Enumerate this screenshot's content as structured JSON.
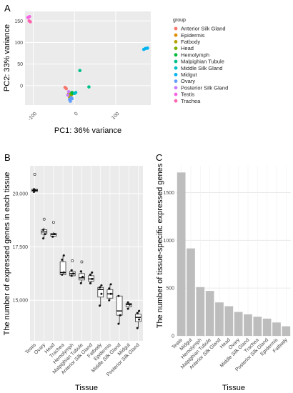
{
  "panel_labels": [
    "A",
    "B",
    "C"
  ],
  "chart_data": [
    {
      "type": "scatter",
      "panel": "A",
      "xlabel": "PC1: 36% variance",
      "ylabel": "PC2: 33% variance",
      "xlim": [
        -120,
        185
      ],
      "ylim": [
        -45,
        172
      ],
      "xticks": [
        -100,
        0,
        100
      ],
      "yticks": [
        0,
        50,
        100,
        150
      ],
      "legend_title": "group",
      "legend_position": "right",
      "grid": true,
      "series": [
        {
          "name": "Anterior Silk Gland",
          "color": "#f8766d",
          "points": [
            [
              -23,
              -4
            ],
            [
              -20,
              -7
            ]
          ]
        },
        {
          "name": "Epidermis",
          "color": "#de8c00",
          "points": [
            [
              -12,
              -18
            ],
            [
              -8,
              -22
            ]
          ]
        },
        {
          "name": "Fatbody",
          "color": "#b79f00",
          "points": [
            [
              -15,
              -20
            ],
            [
              -12,
              -26
            ]
          ]
        },
        {
          "name": "Head",
          "color": "#7cae00",
          "points": [
            [
              -10,
              -18
            ],
            [
              -8,
              -20
            ]
          ]
        },
        {
          "name": "Hemolymph",
          "color": "#00ba38",
          "points": [
            [
              -6,
              -16
            ],
            [
              -4,
              -18
            ]
          ]
        },
        {
          "name": "Malpighian Tubule",
          "color": "#00c08b",
          "points": [
            [
              13,
              35
            ],
            [
              35,
              -3
            ]
          ]
        },
        {
          "name": "Middle Silk Gland",
          "color": "#00bfc4",
          "points": [
            [
              0,
              -18
            ],
            [
              3,
              -16
            ]
          ]
        },
        {
          "name": "Midgut",
          "color": "#00b4f0",
          "points": [
            [
              168,
              84
            ],
            [
              172,
              86
            ],
            [
              177,
              87
            ]
          ]
        },
        {
          "name": "Ovary",
          "color": "#619cff",
          "points": [
            [
              -8,
              -28
            ],
            [
              -12,
              -32
            ],
            [
              -10,
              -36
            ],
            [
              -6,
              -30
            ]
          ]
        },
        {
          "name": "Posterior Silk Gland",
          "color": "#c77cff",
          "points": [
            [
              -14,
              -14
            ],
            [
              -16,
              -22
            ]
          ]
        },
        {
          "name": "Testis",
          "color": "#f564e3",
          "points": [
            [
              -113,
              158
            ],
            [
              -109,
              160
            ]
          ]
        },
        {
          "name": "Trachea",
          "color": "#ff64b0",
          "points": [
            [
              -110,
              150
            ],
            [
              -107,
              148
            ]
          ]
        }
      ]
    },
    {
      "type": "box",
      "panel": "B",
      "xlabel": "Tissue",
      "ylabel": "The number of expressed genes in each tissue",
      "ylim": [
        13100,
        21300
      ],
      "yticks": [
        15000,
        17500,
        20000
      ],
      "ytick_labels": [
        "15,000",
        "17,500",
        "20,000"
      ],
      "grid": true,
      "categories": [
        "Testis",
        "Ovary",
        "Head",
        "Trachea",
        "Hemolymph",
        "Malpighian Tubule",
        "Anterior Silk Gland",
        "Fatbody",
        "Epidermis",
        "Middle Silk Gland",
        "Midgut",
        "Posterior Silk Gland"
      ],
      "boxes": [
        {
          "q1": 20100,
          "median": 20150,
          "q3": 20200,
          "low": 20050,
          "high": 20250,
          "outliers": [
            20900
          ],
          "points": [
            20080,
            20150,
            20200
          ]
        },
        {
          "q1": 18100,
          "median": 18200,
          "q3": 18300,
          "low": 17900,
          "high": 18400,
          "outliers": [
            18800
          ],
          "points": [
            17900,
            18100,
            18300
          ]
        },
        {
          "q1": 18000,
          "median": 18080,
          "q3": 18130,
          "low": 17950,
          "high": 18200,
          "outliers": [
            18650
          ],
          "points": [
            17980,
            18100
          ]
        },
        {
          "q1": 16200,
          "median": 16300,
          "q3": 16800,
          "low": 16200,
          "high": 17100,
          "outliers": [],
          "points": [
            16200,
            16300,
            16900,
            17100
          ]
        },
        {
          "q1": 16150,
          "median": 16250,
          "q3": 16350,
          "low": 16100,
          "high": 16450,
          "outliers": [
            16850
          ],
          "points": [
            16150,
            16250,
            16400
          ]
        },
        {
          "q1": 15950,
          "median": 16050,
          "q3": 16250,
          "low": 15800,
          "high": 16400,
          "outliers": [
            16800
          ],
          "points": [
            15800,
            16100,
            16350
          ]
        },
        {
          "q1": 15900,
          "median": 16000,
          "q3": 16150,
          "low": 15750,
          "high": 16300,
          "outliers": [],
          "points": [
            15800,
            16000,
            16200,
            16300
          ]
        },
        {
          "q1": 15150,
          "median": 15500,
          "q3": 15600,
          "low": 14750,
          "high": 15700,
          "outliers": [],
          "points": [
            14750,
            15300,
            15600,
            15700
          ]
        },
        {
          "q1": 15100,
          "median": 15300,
          "q3": 15500,
          "low": 15000,
          "high": 15750,
          "outliers": [],
          "points": [
            15000,
            15300,
            15550,
            15750
          ]
        },
        {
          "q1": 14300,
          "median": 14500,
          "q3": 15200,
          "low": 13900,
          "high": 15200,
          "outliers": [],
          "points": [
            13900,
            14300,
            15200
          ]
        },
        {
          "q1": 14700,
          "median": 14800,
          "q3": 14850,
          "low": 14600,
          "high": 14900,
          "outliers": [],
          "points": [
            14600,
            14800,
            14900
          ]
        },
        {
          "q1": 14000,
          "median": 14200,
          "q3": 14350,
          "low": 13700,
          "high": 14500,
          "outliers": [],
          "points": [
            13700,
            14100,
            14400,
            14500
          ]
        }
      ]
    },
    {
      "type": "bar",
      "panel": "C",
      "xlabel": "Tissue",
      "ylabel": "The number of tissue-specific expressed genes",
      "ylim": [
        0,
        1780
      ],
      "yticks": [
        0,
        500,
        1000,
        1500
      ],
      "grid": true,
      "bar_color": "#bdbdbd",
      "categories": [
        "Testis",
        "Midgut",
        "Hemolymph",
        "Malpighian Tubule",
        "Anterior Silk Gland",
        "Head",
        "Ovary",
        "Middle Silk Gland",
        "Trachea",
        "Posterior Silk Gland",
        "Epidermis",
        "Fatbody"
      ],
      "values": [
        1710,
        915,
        510,
        470,
        350,
        310,
        250,
        225,
        200,
        180,
        140,
        100
      ]
    }
  ]
}
